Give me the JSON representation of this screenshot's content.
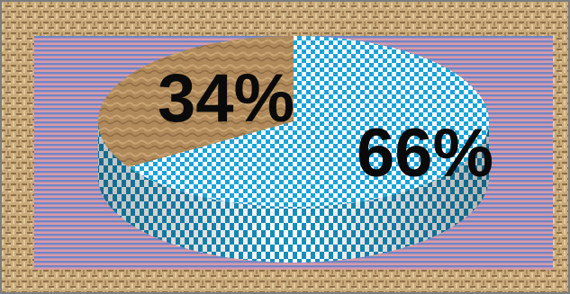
{
  "chart_data": {
    "type": "pie",
    "style": "3d",
    "slices": [
      {
        "label": "34%",
        "value": 34,
        "fill": "burlap-texture"
      },
      {
        "label": "66%",
        "value": 66,
        "fill": "blue-checker"
      }
    ],
    "title": "",
    "legend": "none",
    "background": "pink-blue-stripes",
    "frame": "burlap-texture"
  },
  "colors": {
    "checker_blue": "#1aa3d9",
    "checker_white": "#ffffff",
    "stripe_pink": "#d99aa6",
    "stripe_blue": "#6f86c8",
    "burlap_base": "#c9ab7c",
    "burlap_dark": "#8f7048",
    "slice_brown": "#b08a5a",
    "label_color": "#0a0a0a"
  }
}
